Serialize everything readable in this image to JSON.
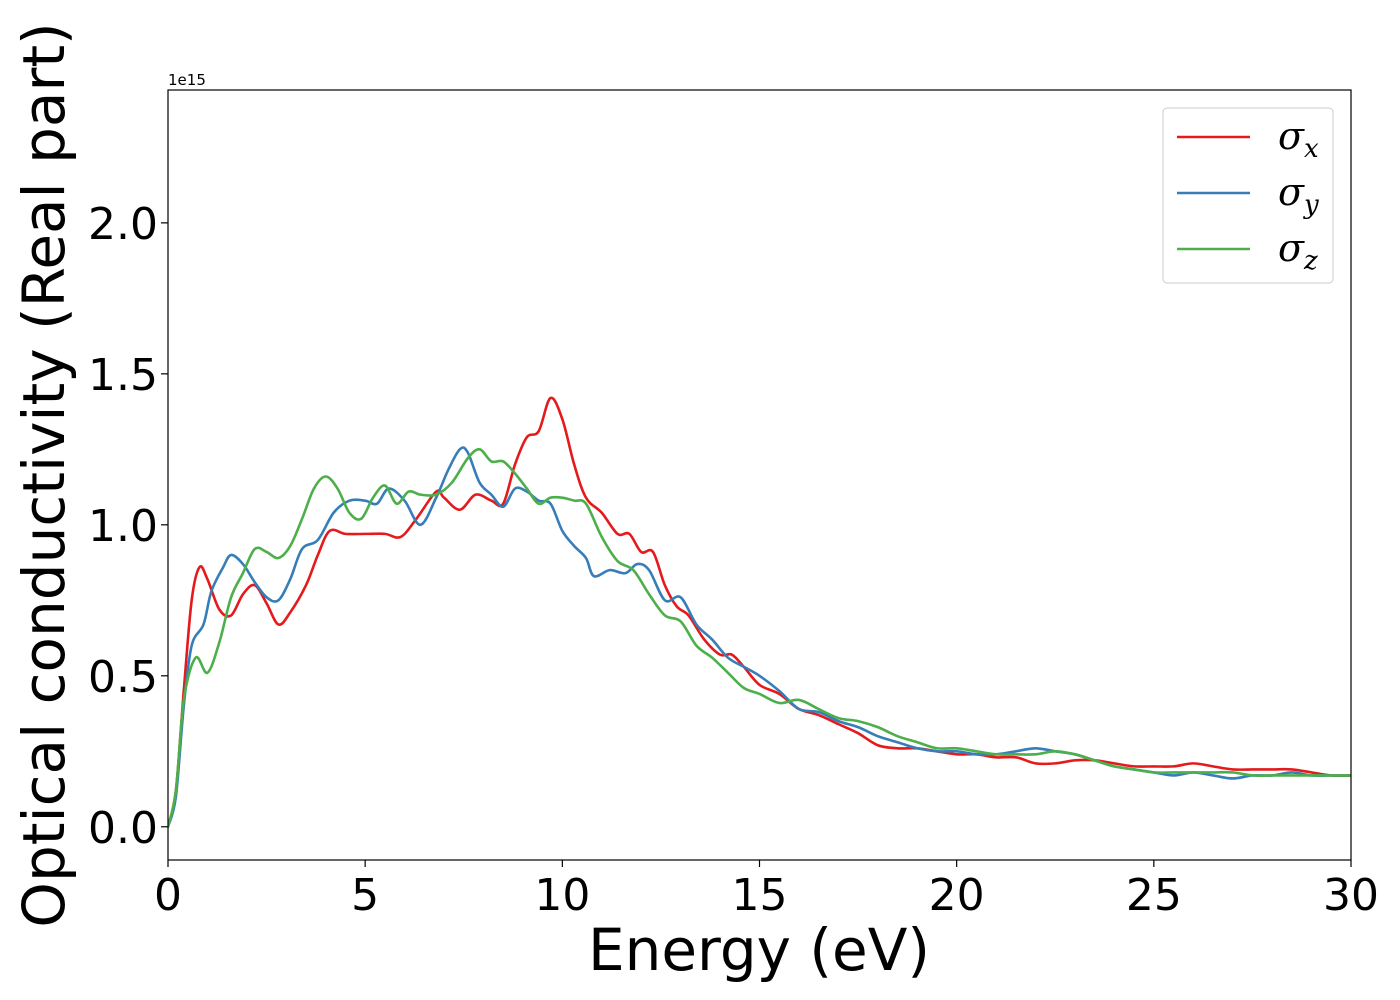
{
  "chart_data": {
    "type": "line",
    "xlabel": "Energy (eV)",
    "ylabel": "Optical conductivity (Real part)",
    "offset_text": "1e15",
    "xlim": [
      0,
      30
    ],
    "ylim": [
      -0.11,
      2.44
    ],
    "y_scale_factor": 1000000000000000.0,
    "x_ticks": [
      0,
      5,
      10,
      15,
      20,
      25,
      30
    ],
    "x_tick_labels": [
      "0",
      "5",
      "10",
      "15",
      "20",
      "25",
      "30"
    ],
    "y_ticks": [
      0.0,
      0.5,
      1.0,
      1.5,
      2.0
    ],
    "y_tick_labels": [
      "0.0",
      "0.5",
      "1.0",
      "1.5",
      "2.0"
    ],
    "grid": false,
    "legend_position": "top-right",
    "series": [
      {
        "name": "σx",
        "symbol": "σ",
        "subscript": "x",
        "color": "#e41a1c",
        "points": [
          [
            0,
            0.0
          ],
          [
            0.2,
            0.12
          ],
          [
            0.4,
            0.45
          ],
          [
            0.6,
            0.75
          ],
          [
            0.8,
            0.86
          ],
          [
            1.0,
            0.82
          ],
          [
            1.3,
            0.72
          ],
          [
            1.6,
            0.7
          ],
          [
            1.9,
            0.77
          ],
          [
            2.2,
            0.8
          ],
          [
            2.5,
            0.74
          ],
          [
            2.8,
            0.67
          ],
          [
            3.1,
            0.71
          ],
          [
            3.5,
            0.8
          ],
          [
            3.8,
            0.9
          ],
          [
            4.1,
            0.98
          ],
          [
            4.5,
            0.97
          ],
          [
            5.0,
            0.97
          ],
          [
            5.5,
            0.97
          ],
          [
            5.9,
            0.96
          ],
          [
            6.3,
            1.02
          ],
          [
            6.8,
            1.11
          ],
          [
            7.0,
            1.09
          ],
          [
            7.4,
            1.05
          ],
          [
            7.8,
            1.1
          ],
          [
            8.2,
            1.08
          ],
          [
            8.5,
            1.07
          ],
          [
            8.8,
            1.2
          ],
          [
            9.1,
            1.29
          ],
          [
            9.4,
            1.31
          ],
          [
            9.7,
            1.42
          ],
          [
            10.0,
            1.35
          ],
          [
            10.3,
            1.2
          ],
          [
            10.6,
            1.09
          ],
          [
            11.0,
            1.04
          ],
          [
            11.4,
            0.97
          ],
          [
            11.7,
            0.97
          ],
          [
            12.0,
            0.91
          ],
          [
            12.3,
            0.91
          ],
          [
            12.6,
            0.8
          ],
          [
            12.9,
            0.73
          ],
          [
            13.2,
            0.7
          ],
          [
            13.6,
            0.62
          ],
          [
            14.0,
            0.57
          ],
          [
            14.3,
            0.57
          ],
          [
            14.6,
            0.53
          ],
          [
            15.0,
            0.47
          ],
          [
            15.5,
            0.44
          ],
          [
            16.0,
            0.39
          ],
          [
            16.5,
            0.37
          ],
          [
            17.0,
            0.34
          ],
          [
            17.5,
            0.31
          ],
          [
            18.0,
            0.27
          ],
          [
            18.5,
            0.26
          ],
          [
            19.0,
            0.26
          ],
          [
            19.5,
            0.25
          ],
          [
            20.0,
            0.24
          ],
          [
            20.5,
            0.24
          ],
          [
            21.0,
            0.23
          ],
          [
            21.5,
            0.23
          ],
          [
            22.0,
            0.21
          ],
          [
            22.5,
            0.21
          ],
          [
            23.0,
            0.22
          ],
          [
            23.5,
            0.22
          ],
          [
            24.0,
            0.21
          ],
          [
            24.5,
            0.2
          ],
          [
            25.0,
            0.2
          ],
          [
            25.5,
            0.2
          ],
          [
            26.0,
            0.21
          ],
          [
            26.5,
            0.2
          ],
          [
            27.0,
            0.19
          ],
          [
            27.5,
            0.19
          ],
          [
            28.0,
            0.19
          ],
          [
            28.5,
            0.19
          ],
          [
            29.0,
            0.18
          ],
          [
            29.5,
            0.17
          ],
          [
            30.0,
            0.17
          ]
        ]
      },
      {
        "name": "σy",
        "symbol": "σ",
        "subscript": "y",
        "color": "#377eb8",
        "points": [
          [
            0,
            0.0
          ],
          [
            0.2,
            0.1
          ],
          [
            0.4,
            0.4
          ],
          [
            0.6,
            0.6
          ],
          [
            0.9,
            0.67
          ],
          [
            1.1,
            0.78
          ],
          [
            1.4,
            0.86
          ],
          [
            1.6,
            0.9
          ],
          [
            1.9,
            0.87
          ],
          [
            2.2,
            0.81
          ],
          [
            2.5,
            0.76
          ],
          [
            2.8,
            0.75
          ],
          [
            3.1,
            0.82
          ],
          [
            3.4,
            0.92
          ],
          [
            3.8,
            0.95
          ],
          [
            4.2,
            1.04
          ],
          [
            4.6,
            1.08
          ],
          [
            5.0,
            1.08
          ],
          [
            5.3,
            1.07
          ],
          [
            5.6,
            1.12
          ],
          [
            6.0,
            1.08
          ],
          [
            6.4,
            1.0
          ],
          [
            6.8,
            1.09
          ],
          [
            7.1,
            1.18
          ],
          [
            7.4,
            1.25
          ],
          [
            7.6,
            1.24
          ],
          [
            7.9,
            1.14
          ],
          [
            8.2,
            1.1
          ],
          [
            8.5,
            1.06
          ],
          [
            8.8,
            1.12
          ],
          [
            9.1,
            1.11
          ],
          [
            9.4,
            1.08
          ],
          [
            9.7,
            1.07
          ],
          [
            10.0,
            0.98
          ],
          [
            10.3,
            0.93
          ],
          [
            10.6,
            0.89
          ],
          [
            10.8,
            0.83
          ],
          [
            11.2,
            0.85
          ],
          [
            11.6,
            0.84
          ],
          [
            11.9,
            0.87
          ],
          [
            12.2,
            0.85
          ],
          [
            12.6,
            0.75
          ],
          [
            13.0,
            0.76
          ],
          [
            13.4,
            0.67
          ],
          [
            13.8,
            0.62
          ],
          [
            14.2,
            0.56
          ],
          [
            14.6,
            0.53
          ],
          [
            15.0,
            0.5
          ],
          [
            15.5,
            0.45
          ],
          [
            16.0,
            0.39
          ],
          [
            16.5,
            0.38
          ],
          [
            17.0,
            0.35
          ],
          [
            17.5,
            0.33
          ],
          [
            18.0,
            0.3
          ],
          [
            18.5,
            0.28
          ],
          [
            19.0,
            0.26
          ],
          [
            19.5,
            0.25
          ],
          [
            20.0,
            0.25
          ],
          [
            20.5,
            0.24
          ],
          [
            21.0,
            0.24
          ],
          [
            21.5,
            0.25
          ],
          [
            22.0,
            0.26
          ],
          [
            22.5,
            0.25
          ],
          [
            23.0,
            0.24
          ],
          [
            23.5,
            0.22
          ],
          [
            24.0,
            0.2
          ],
          [
            24.5,
            0.19
          ],
          [
            25.0,
            0.18
          ],
          [
            25.5,
            0.17
          ],
          [
            26.0,
            0.18
          ],
          [
            26.5,
            0.17
          ],
          [
            27.0,
            0.16
          ],
          [
            27.5,
            0.17
          ],
          [
            28.0,
            0.17
          ],
          [
            28.5,
            0.18
          ],
          [
            29.0,
            0.17
          ],
          [
            29.5,
            0.17
          ],
          [
            30.0,
            0.17
          ]
        ]
      },
      {
        "name": "σz",
        "symbol": "σ",
        "subscript": "z",
        "color": "#4daf4a",
        "points": [
          [
            0,
            0.0
          ],
          [
            0.2,
            0.12
          ],
          [
            0.4,
            0.42
          ],
          [
            0.7,
            0.56
          ],
          [
            1.0,
            0.51
          ],
          [
            1.3,
            0.61
          ],
          [
            1.6,
            0.76
          ],
          [
            1.9,
            0.84
          ],
          [
            2.2,
            0.92
          ],
          [
            2.5,
            0.91
          ],
          [
            2.8,
            0.89
          ],
          [
            3.1,
            0.93
          ],
          [
            3.4,
            1.02
          ],
          [
            3.7,
            1.12
          ],
          [
            4.0,
            1.16
          ],
          [
            4.3,
            1.12
          ],
          [
            4.6,
            1.04
          ],
          [
            4.9,
            1.02
          ],
          [
            5.2,
            1.09
          ],
          [
            5.5,
            1.13
          ],
          [
            5.8,
            1.07
          ],
          [
            6.1,
            1.11
          ],
          [
            6.4,
            1.1
          ],
          [
            6.8,
            1.1
          ],
          [
            7.2,
            1.14
          ],
          [
            7.6,
            1.22
          ],
          [
            7.9,
            1.25
          ],
          [
            8.2,
            1.21
          ],
          [
            8.5,
            1.21
          ],
          [
            8.8,
            1.17
          ],
          [
            9.1,
            1.12
          ],
          [
            9.4,
            1.07
          ],
          [
            9.7,
            1.09
          ],
          [
            10.0,
            1.09
          ],
          [
            10.3,
            1.08
          ],
          [
            10.6,
            1.07
          ],
          [
            11.0,
            0.96
          ],
          [
            11.4,
            0.88
          ],
          [
            11.8,
            0.85
          ],
          [
            12.2,
            0.77
          ],
          [
            12.6,
            0.7
          ],
          [
            13.0,
            0.68
          ],
          [
            13.4,
            0.6
          ],
          [
            13.8,
            0.56
          ],
          [
            14.2,
            0.51
          ],
          [
            14.6,
            0.46
          ],
          [
            15.0,
            0.44
          ],
          [
            15.5,
            0.41
          ],
          [
            16.0,
            0.42
          ],
          [
            16.5,
            0.39
          ],
          [
            17.0,
            0.36
          ],
          [
            17.5,
            0.35
          ],
          [
            18.0,
            0.33
          ],
          [
            18.5,
            0.3
          ],
          [
            19.0,
            0.28
          ],
          [
            19.5,
            0.26
          ],
          [
            20.0,
            0.26
          ],
          [
            20.5,
            0.25
          ],
          [
            21.0,
            0.24
          ],
          [
            21.5,
            0.24
          ],
          [
            22.0,
            0.24
          ],
          [
            22.5,
            0.25
          ],
          [
            23.0,
            0.24
          ],
          [
            23.5,
            0.22
          ],
          [
            24.0,
            0.2
          ],
          [
            24.5,
            0.19
          ],
          [
            25.0,
            0.18
          ],
          [
            25.5,
            0.18
          ],
          [
            26.0,
            0.18
          ],
          [
            26.5,
            0.18
          ],
          [
            27.0,
            0.18
          ],
          [
            27.5,
            0.17
          ],
          [
            28.0,
            0.17
          ],
          [
            28.5,
            0.17
          ],
          [
            29.0,
            0.17
          ],
          [
            29.5,
            0.17
          ],
          [
            30.0,
            0.17
          ]
        ]
      }
    ]
  }
}
